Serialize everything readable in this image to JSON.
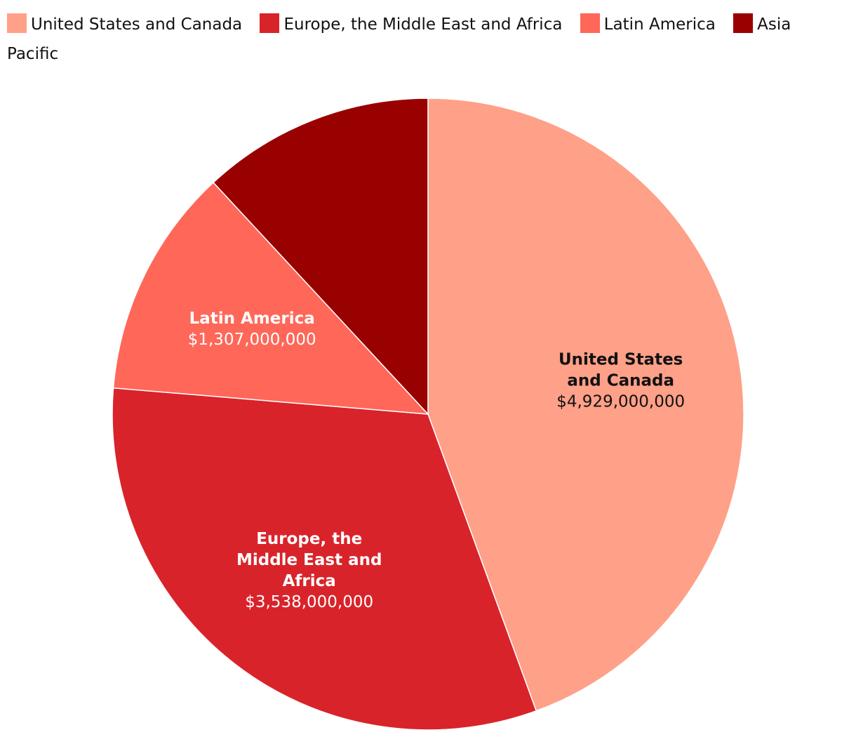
{
  "chart_data": {
    "type": "pie",
    "categories": [
      "United States and Canada",
      "Europe, the Middle East and Africa",
      "Latin America",
      "Asia Pacific"
    ],
    "values": [
      4929000000,
      3538000000,
      1307000000,
      1320000000
    ],
    "value_labels": [
      "$4,929,000,000",
      "$3,538,000,000",
      "$1,307,000,000",
      ""
    ],
    "label_lines": [
      [
        "United States",
        "and Canada"
      ],
      [
        "Europe, the",
        "Middle East and",
        "Africa"
      ],
      [
        "Latin America"
      ],
      []
    ],
    "colors": [
      "#ffa088",
      "#d9232a",
      "#ff6759",
      "#990000"
    ],
    "label_colors": [
      "#111111",
      "#ffffff",
      "#ffffff",
      "#ffffff"
    ],
    "start_angle_deg": 0,
    "direction": "clockwise",
    "legend_position": "top"
  }
}
